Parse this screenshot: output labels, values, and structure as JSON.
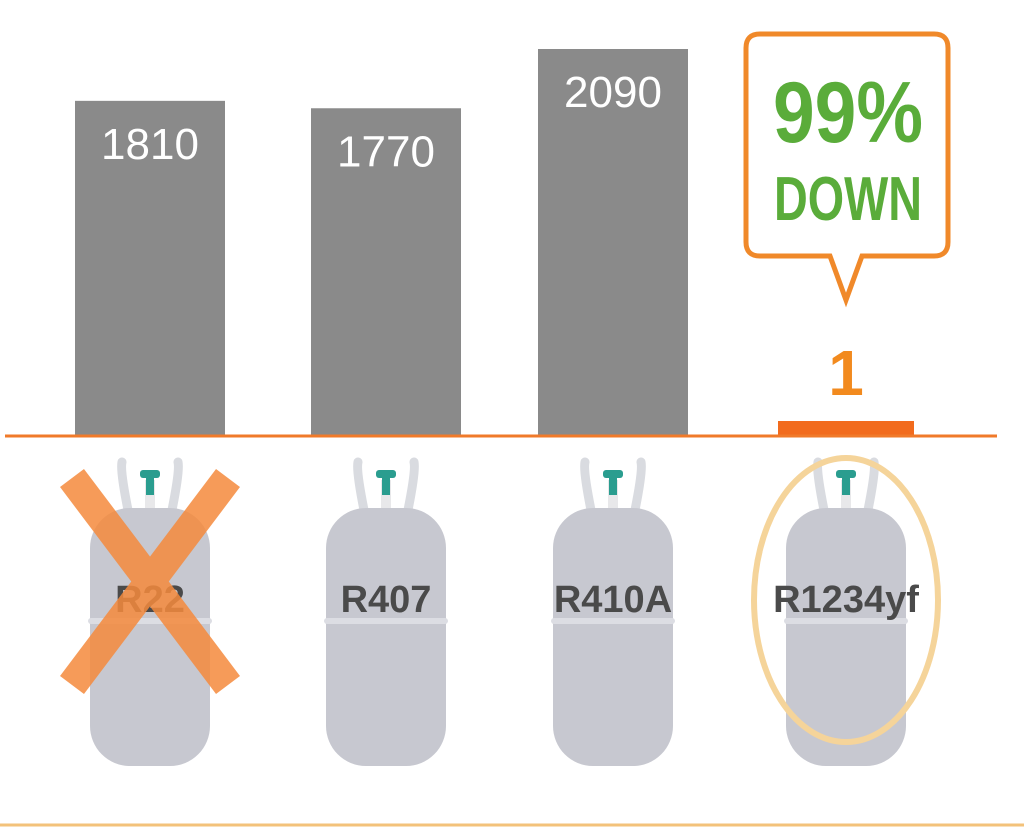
{
  "chart_data": {
    "type": "bar",
    "categories": [
      "R22",
      "R407",
      "R410A",
      "R1234yf"
    ],
    "values": [
      1810,
      1770,
      2090,
      1
    ],
    "value_labels": [
      "1810",
      "1770",
      "2090",
      "1"
    ],
    "ylim": [
      0,
      2090
    ],
    "grid": false,
    "crossed_out": [
      "R22"
    ],
    "highlighted": [
      "R1234yf"
    ],
    "callout": {
      "line1": "99%",
      "line2": "DOWN"
    },
    "colors": {
      "bar": "#8a8a8a",
      "highlight_bar": "#f26b1d",
      "baseline": "#f07a2a",
      "callout_border": "#f0892a",
      "callout_text": "#5aac3a",
      "highlight_value": "#f28a1e",
      "cross": "#f58a3c",
      "highlight_ring": "#f5d49a",
      "cylinder": "#c7c8d0",
      "valve": "#2a9d8f"
    }
  }
}
